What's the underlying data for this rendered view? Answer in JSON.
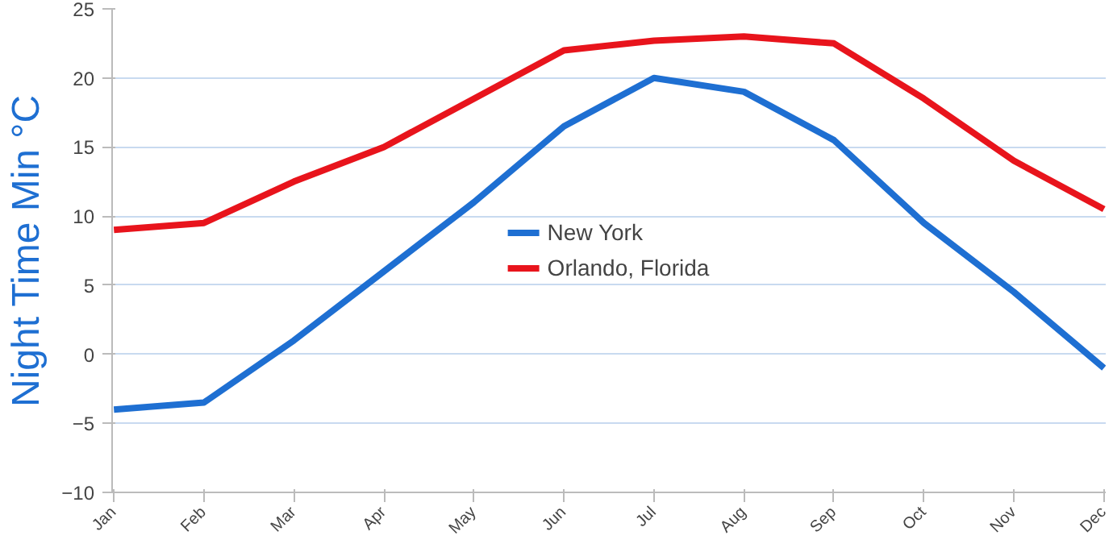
{
  "chart_data": {
    "type": "line",
    "ylabel": "Night Time Min °C",
    "categories": [
      "Jan",
      "Feb",
      "Mar",
      "Apr",
      "May",
      "Jun",
      "Jul",
      "Aug",
      "Sep",
      "Oct",
      "Nov",
      "Dec"
    ],
    "series": [
      {
        "name": "New York",
        "color": "#1e6fd2",
        "values": [
          -4,
          -3.5,
          1,
          6,
          11,
          16.5,
          20,
          19,
          15.5,
          9.5,
          4.5,
          -1
        ]
      },
      {
        "name": "Orlando, Florida",
        "color": "#e8141c",
        "values": [
          9,
          9.5,
          12.5,
          15,
          18.5,
          22,
          22.7,
          23,
          22.5,
          18.5,
          14,
          10.5
        ]
      }
    ],
    "ylim": [
      -10,
      25
    ],
    "yticks": [
      -10,
      -5,
      0,
      5,
      10,
      15,
      20,
      25
    ],
    "grid": "y",
    "legend": "center",
    "marker": "none",
    "line_style": "solid"
  }
}
